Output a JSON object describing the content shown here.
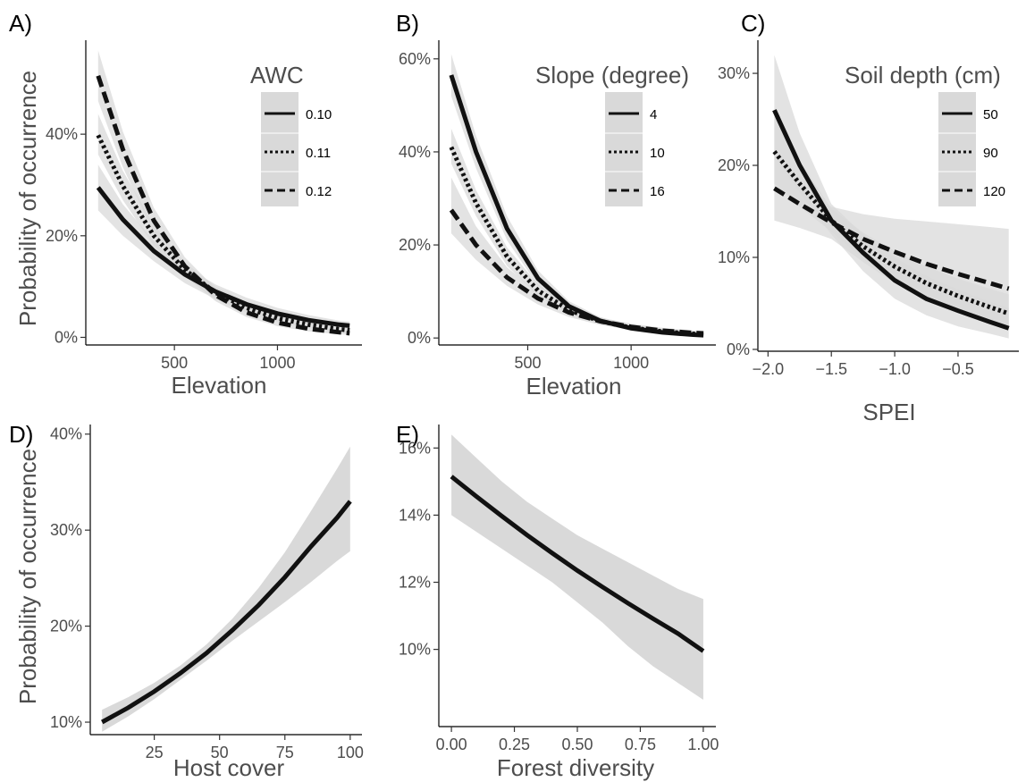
{
  "figure": {
    "y_axis_title": "Probability of occurrence"
  },
  "chart_data": [
    {
      "id": "A",
      "panel_label": "A)",
      "type": "line",
      "xlabel": "Elevation",
      "ylabel": "Probability of occurrence",
      "xlim": [
        70,
        1410
      ],
      "ylim": [
        -0.015,
        0.585
      ],
      "xticks": [
        500,
        1000
      ],
      "xtick_labels": [
        "500",
        "1000"
      ],
      "yticks": [
        0,
        0.2,
        0.4
      ],
      "ytick_labels": [
        "0%",
        "20%",
        "40%"
      ],
      "legend": {
        "title": "AWC",
        "position": "top-right"
      },
      "colors": {
        "line": "#111111",
        "ribbon": "#d9d9d9"
      },
      "series": [
        {
          "name": "0.10",
          "dash": "solid",
          "x": [
            130,
            250,
            400,
            550,
            700,
            850,
            1000,
            1150,
            1300,
            1350
          ],
          "y": [
            0.295,
            0.232,
            0.17,
            0.124,
            0.09,
            0.065,
            0.047,
            0.034,
            0.025,
            0.023
          ],
          "lower": [
            0.25,
            0.2,
            0.15,
            0.107,
            0.075,
            0.052,
            0.036,
            0.025,
            0.017,
            0.015
          ],
          "upper": [
            0.34,
            0.262,
            0.19,
            0.14,
            0.104,
            0.078,
            0.058,
            0.044,
            0.033,
            0.031
          ]
        },
        {
          "name": "0.11",
          "dash": "dotted",
          "x": [
            130,
            250,
            400,
            550,
            700,
            850,
            1000,
            1150,
            1300,
            1350
          ],
          "y": [
            0.398,
            0.298,
            0.2,
            0.133,
            0.088,
            0.058,
            0.038,
            0.025,
            0.016,
            0.014
          ],
          "lower": [
            0.36,
            0.27,
            0.18,
            0.118,
            0.075,
            0.048,
            0.03,
            0.018,
            0.011,
            0.009
          ],
          "upper": [
            0.44,
            0.328,
            0.222,
            0.148,
            0.1,
            0.068,
            0.046,
            0.032,
            0.022,
            0.02
          ]
        },
        {
          "name": "0.12",
          "dash": "dashed",
          "x": [
            130,
            250,
            400,
            550,
            700,
            850,
            1000,
            1150,
            1300,
            1350
          ],
          "y": [
            0.515,
            0.37,
            0.23,
            0.14,
            0.083,
            0.049,
            0.029,
            0.017,
            0.01,
            0.008
          ],
          "lower": [
            0.465,
            0.335,
            0.205,
            0.122,
            0.071,
            0.04,
            0.022,
            0.012,
            0.006,
            0.005
          ],
          "upper": [
            0.565,
            0.405,
            0.255,
            0.158,
            0.096,
            0.058,
            0.036,
            0.022,
            0.014,
            0.012
          ]
        }
      ]
    },
    {
      "id": "B",
      "panel_label": "B)",
      "type": "line",
      "xlabel": "Elevation",
      "ylabel": "",
      "xlim": [
        70,
        1410
      ],
      "ylim": [
        -0.015,
        0.64
      ],
      "xticks": [
        500,
        1000
      ],
      "xtick_labels": [
        "500",
        "1000"
      ],
      "yticks": [
        0,
        0.2,
        0.4,
        0.6
      ],
      "ytick_labels": [
        "0%",
        "20%",
        "40%",
        "60%"
      ],
      "legend": {
        "title": "Slope (degree)",
        "position": "top-right"
      },
      "colors": {
        "line": "#111111",
        "ribbon": "#d9d9d9"
      },
      "series": [
        {
          "name": "4",
          "dash": "solid",
          "x": [
            130,
            250,
            400,
            550,
            700,
            850,
            1000,
            1150,
            1300,
            1350
          ],
          "y": [
            0.565,
            0.4,
            0.235,
            0.128,
            0.068,
            0.037,
            0.021,
            0.012,
            0.007,
            0.006
          ],
          "lower": [
            0.52,
            0.365,
            0.21,
            0.112,
            0.058,
            0.03,
            0.016,
            0.008,
            0.004,
            0.003
          ],
          "upper": [
            0.61,
            0.435,
            0.262,
            0.145,
            0.079,
            0.045,
            0.027,
            0.016,
            0.01,
            0.009
          ]
        },
        {
          "name": "10",
          "dash": "dotted",
          "x": [
            130,
            250,
            400,
            550,
            700,
            850,
            1000,
            1150,
            1300,
            1350
          ],
          "y": [
            0.41,
            0.29,
            0.175,
            0.102,
            0.06,
            0.036,
            0.022,
            0.014,
            0.009,
            0.008
          ],
          "lower": [
            0.375,
            0.262,
            0.155,
            0.09,
            0.051,
            0.03,
            0.017,
            0.01,
            0.006,
            0.005
          ],
          "upper": [
            0.45,
            0.318,
            0.195,
            0.115,
            0.07,
            0.043,
            0.028,
            0.019,
            0.013,
            0.012
          ]
        },
        {
          "name": "16",
          "dash": "dashed",
          "x": [
            130,
            250,
            400,
            550,
            700,
            850,
            1000,
            1150,
            1300,
            1350
          ],
          "y": [
            0.275,
            0.2,
            0.13,
            0.085,
            0.055,
            0.036,
            0.024,
            0.016,
            0.011,
            0.01
          ],
          "lower": [
            0.225,
            0.168,
            0.112,
            0.072,
            0.045,
            0.028,
            0.018,
            0.011,
            0.007,
            0.006
          ],
          "upper": [
            0.345,
            0.24,
            0.152,
            0.098,
            0.065,
            0.044,
            0.031,
            0.022,
            0.016,
            0.015
          ]
        }
      ]
    },
    {
      "id": "C",
      "panel_label": "C)",
      "type": "line",
      "xlabel": "SPEI",
      "ylabel": "",
      "xlim": [
        -2.08,
        -0.02
      ],
      "ylim": [
        -0.002,
        0.336
      ],
      "xticks": [
        -2.0,
        -1.5,
        -1.0,
        -0.5
      ],
      "xtick_labels": [
        "−2.0",
        "−1.5",
        "−1.0",
        "−0.5"
      ],
      "yticks": [
        0,
        0.1,
        0.2,
        0.3
      ],
      "ytick_labels": [
        "0%",
        "10%",
        "20%",
        "30%"
      ],
      "legend": {
        "title": "Soil depth (cm)",
        "position": "top-right"
      },
      "colors": {
        "line": "#111111",
        "ribbon": "#d9d9d9"
      },
      "series": [
        {
          "name": "50",
          "dash": "solid",
          "x": [
            -1.95,
            -1.75,
            -1.5,
            -1.25,
            -1.0,
            -0.75,
            -0.5,
            -0.25,
            -0.1
          ],
          "y": [
            0.26,
            0.2,
            0.14,
            0.105,
            0.075,
            0.055,
            0.042,
            0.03,
            0.023
          ],
          "lower": [
            0.21,
            0.17,
            0.125,
            0.085,
            0.055,
            0.037,
            0.025,
            0.017,
            0.012
          ],
          "upper": [
            0.32,
            0.235,
            0.158,
            0.125,
            0.1,
            0.08,
            0.065,
            0.052,
            0.045
          ]
        },
        {
          "name": "90",
          "dash": "dotted",
          "x": [
            -1.95,
            -1.75,
            -1.5,
            -1.25,
            -1.0,
            -0.75,
            -0.5,
            -0.25,
            -0.1
          ],
          "y": [
            0.215,
            0.18,
            0.14,
            0.112,
            0.09,
            0.072,
            0.058,
            0.046,
            0.039
          ],
          "lower": [
            0.18,
            0.155,
            0.128,
            0.098,
            0.075,
            0.056,
            0.043,
            0.032,
            0.026
          ],
          "upper": [
            0.255,
            0.205,
            0.153,
            0.127,
            0.107,
            0.09,
            0.077,
            0.066,
            0.06
          ]
        },
        {
          "name": "120",
          "dash": "dashed",
          "x": [
            -1.95,
            -1.75,
            -1.5,
            -1.25,
            -1.0,
            -0.75,
            -0.5,
            -0.25,
            -0.1
          ],
          "y": [
            0.175,
            0.158,
            0.138,
            0.12,
            0.106,
            0.093,
            0.082,
            0.072,
            0.066
          ],
          "lower": [
            0.14,
            0.132,
            0.12,
            0.095,
            0.072,
            0.054,
            0.041,
            0.031,
            0.025
          ],
          "upper": [
            0.21,
            0.18,
            0.155,
            0.147,
            0.142,
            0.139,
            0.136,
            0.133,
            0.131
          ]
        }
      ]
    },
    {
      "id": "D",
      "panel_label": "D)",
      "type": "line",
      "xlabel": "Host cover",
      "ylabel": "Probability of occurrence",
      "xlim": [
        0.5,
        104.5
      ],
      "ylim": [
        0.087,
        0.41
      ],
      "xticks": [
        25,
        50,
        75,
        100
      ],
      "xtick_labels": [
        "25",
        "50",
        "75",
        "100"
      ],
      "yticks": [
        0.1,
        0.2,
        0.3,
        0.4
      ],
      "ytick_labels": [
        "10%",
        "20%",
        "30%",
        "40%"
      ],
      "legend": null,
      "colors": {
        "line": "#111111",
        "ribbon": "#d9d9d9"
      },
      "series": [
        {
          "name": "",
          "dash": "solid",
          "x": [
            5,
            15,
            25,
            35,
            45,
            55,
            65,
            75,
            85,
            95,
            100
          ],
          "y": [
            0.1,
            0.115,
            0.132,
            0.151,
            0.172,
            0.196,
            0.222,
            0.251,
            0.283,
            0.313,
            0.33
          ],
          "lower": [
            0.09,
            0.106,
            0.124,
            0.144,
            0.164,
            0.185,
            0.205,
            0.225,
            0.246,
            0.268,
            0.278
          ],
          "upper": [
            0.113,
            0.126,
            0.141,
            0.159,
            0.181,
            0.208,
            0.24,
            0.277,
            0.32,
            0.364,
            0.387
          ]
        }
      ]
    },
    {
      "id": "E",
      "panel_label": "E)",
      "type": "line",
      "xlabel": "Forest diversity",
      "ylabel": "",
      "xlim": [
        -0.05,
        1.05
      ],
      "ylim": [
        0.077,
        0.167
      ],
      "xticks": [
        0,
        0.25,
        0.5,
        0.75,
        1.0
      ],
      "xtick_labels": [
        "0.00",
        "0.25",
        "0.50",
        "0.75",
        "1.00"
      ],
      "yticks": [
        0.1,
        0.12,
        0.14,
        0.16
      ],
      "ytick_labels": [
        "10%",
        "12%",
        "14%",
        "16%"
      ],
      "legend": null,
      "colors": {
        "line": "#111111",
        "ribbon": "#d9d9d9"
      },
      "series": [
        {
          "name": "",
          "dash": "solid",
          "x": [
            0,
            0.1,
            0.2,
            0.3,
            0.4,
            0.5,
            0.6,
            0.7,
            0.8,
            0.9,
            1.0
          ],
          "y": [
            0.1515,
            0.1455,
            0.1397,
            0.1341,
            0.1287,
            0.1235,
            0.1186,
            0.1138,
            0.1092,
            0.1047,
            0.0995
          ],
          "lower": [
            0.14,
            0.135,
            0.13,
            0.125,
            0.12,
            0.114,
            0.108,
            0.101,
            0.095,
            0.09,
            0.085
          ],
          "upper": [
            0.164,
            0.157,
            0.15,
            0.144,
            0.139,
            0.134,
            0.13,
            0.126,
            0.122,
            0.118,
            0.115
          ]
        }
      ]
    }
  ]
}
